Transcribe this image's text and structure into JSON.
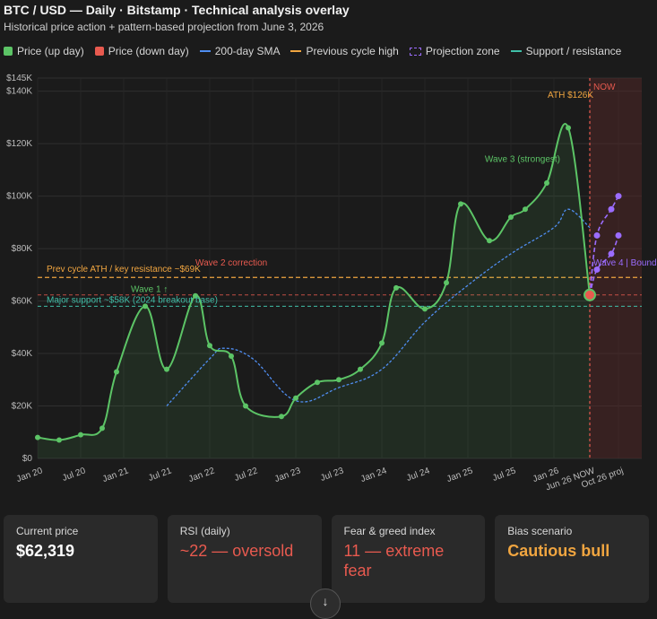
{
  "header": {
    "title": "BTC / USD — Daily · Bitstamp · Technical analysis overlay",
    "subtitle": "Historical price action + pattern-based projection from June 3, 2026"
  },
  "legend": [
    {
      "label": "Price (up day)",
      "kind": "square",
      "color": "#5cc466"
    },
    {
      "label": "Price (down day)",
      "kind": "square",
      "color": "#e85a4f"
    },
    {
      "label": "200-day SMA",
      "kind": "line",
      "color": "#4f8df0"
    },
    {
      "label": "Previous cycle high",
      "kind": "line",
      "color": "#f0a540"
    },
    {
      "label": "Projection zone",
      "kind": "box",
      "color": "#9b6cff"
    },
    {
      "label": "Support / resistance",
      "kind": "line",
      "color": "#3fbfa8"
    }
  ],
  "colors": {
    "price": "#5cc466",
    "down": "#e85a4f",
    "sma": "#4f8df0",
    "prev_high": "#f0a540",
    "projection": "#9b6cff",
    "support": "#3fbfa8"
  },
  "chart_data": {
    "type": "line",
    "ylim": [
      0,
      145000
    ],
    "yticks": [
      0,
      20000,
      40000,
      60000,
      80000,
      100000,
      120000,
      140000,
      145000
    ],
    "ytick_labels": [
      "$0",
      "$20K",
      "$40K",
      "$60K",
      "$80K",
      "$100K",
      "$120K",
      "$140K",
      "$145K"
    ],
    "xtick_labels": [
      "Jan 20",
      "Jul 20",
      "Jan 21",
      "Jul 21",
      "Jan 22",
      "Jul 22",
      "Jan 23",
      "Jul 23",
      "Jan 24",
      "Jul 24",
      "Jan 25",
      "Jul 25",
      "Jan 26",
      "Jun 26 NOW",
      "Oct 26 proj"
    ],
    "price_series": [
      {
        "x": "Jan 20",
        "y": 8000
      },
      {
        "x": "Apr 20",
        "y": 7000
      },
      {
        "x": "Jul 20",
        "y": 9000
      },
      {
        "x": "Oct 20",
        "y": 11500
      },
      {
        "x": "Dec 20",
        "y": 33000
      },
      {
        "x": "Apr 21",
        "y": 58000
      },
      {
        "x": "Jul 21",
        "y": 34000
      },
      {
        "x": "Nov 21",
        "y": 62000
      },
      {
        "x": "Jan 22",
        "y": 43000
      },
      {
        "x": "Apr 22",
        "y": 39000
      },
      {
        "x": "Jun 22",
        "y": 20000
      },
      {
        "x": "Nov 22",
        "y": 16000
      },
      {
        "x": "Jan 23",
        "y": 23000
      },
      {
        "x": "Apr 23",
        "y": 29000
      },
      {
        "x": "Jul 23",
        "y": 30000
      },
      {
        "x": "Oct 23",
        "y": 34000
      },
      {
        "x": "Jan 24",
        "y": 44000
      },
      {
        "x": "Mar 24",
        "y": 65000
      },
      {
        "x": "Jul 24",
        "y": 57000
      },
      {
        "x": "Oct 24",
        "y": 67000
      },
      {
        "x": "Dec 24",
        "y": 97000
      },
      {
        "x": "Apr 25",
        "y": 83000
      },
      {
        "x": "Jul 25",
        "y": 92000
      },
      {
        "x": "Sep 25",
        "y": 95000
      },
      {
        "x": "Dec 25",
        "y": 105000
      },
      {
        "x": "Mar 26",
        "y": 126000
      },
      {
        "x": "Jun 26",
        "y": 62319
      }
    ],
    "sma_series": [
      {
        "x": "Jul 21",
        "y": 20000
      },
      {
        "x": "Jan 22",
        "y": 38000
      },
      {
        "x": "Mar 22",
        "y": 42000
      },
      {
        "x": "Jul 22",
        "y": 38000
      },
      {
        "x": "Jan 23",
        "y": 22000
      },
      {
        "x": "Jul 23",
        "y": 27000
      },
      {
        "x": "Jan 24",
        "y": 34000
      },
      {
        "x": "Jul 24",
        "y": 52000
      },
      {
        "x": "Jan 25",
        "y": 66000
      },
      {
        "x": "Jul 25",
        "y": 78000
      },
      {
        "x": "Jan 26",
        "y": 88000
      },
      {
        "x": "Mar 26",
        "y": 95000
      },
      {
        "x": "Jun 26",
        "y": 88000
      }
    ],
    "projection_upper": [
      {
        "x": "Jun 26",
        "y": 62319
      },
      {
        "x": "Jul 26",
        "y": 85000
      },
      {
        "x": "Sep 26",
        "y": 95000
      },
      {
        "x": "Oct 26",
        "y": 100000
      }
    ],
    "projection_lower": [
      {
        "x": "Jun 26",
        "y": 62319
      },
      {
        "x": "Jul 26",
        "y": 72000
      },
      {
        "x": "Sep 26",
        "y": 78000
      },
      {
        "x": "Oct 26",
        "y": 85000
      }
    ],
    "lines": {
      "prev_cycle_ath": 69000,
      "down_level": 62319,
      "major_support": 58000
    },
    "annotations": {
      "now": "NOW",
      "ath": "ATH $126K",
      "wave3": "Wave 3 (strongest)",
      "wave2": "Wave 2 correction",
      "wave1": "Wave 1 ↑",
      "wave4": "Wave 4 | Bound",
      "prev_cycle": "Prev cycle ATH / key resistance ~$69K",
      "support": "Major support ~$58K (2024 breakout base)"
    }
  },
  "cards": [
    {
      "label": "Current price",
      "value": "$62,319",
      "tone": "white"
    },
    {
      "label": "RSI (daily)",
      "value": "~22 — oversold",
      "tone": "red"
    },
    {
      "label": "Fear & greed index",
      "value": "11 — extreme fear",
      "tone": "red"
    },
    {
      "label": "Bias scenario",
      "value": "Cautious bull",
      "tone": "orange"
    }
  ],
  "scroll_button": {
    "glyph": "↓"
  }
}
